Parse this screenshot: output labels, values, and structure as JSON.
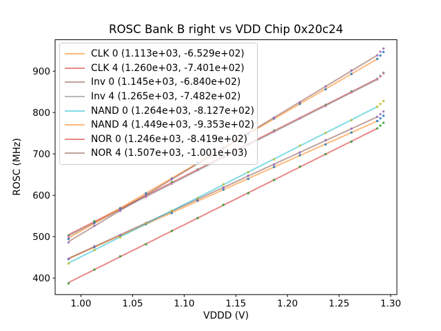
{
  "chart_data": {
    "type": "scatter",
    "title": "ROSC Bank B right vs VDD Chip 0x20c24",
    "xlabel": "VDDD (V)",
    "ylabel": "ROSC (MHz)",
    "xlim": [
      0.975,
      1.306
    ],
    "ylim": [
      360,
      976
    ],
    "grid": false,
    "legend_position": "upper left",
    "xticks": [
      {
        "value": 1.0,
        "label": "1.00"
      },
      {
        "value": 1.05,
        "label": "1.05"
      },
      {
        "value": 1.1,
        "label": "1.10"
      },
      {
        "value": 1.15,
        "label": "1.15"
      },
      {
        "value": 1.2,
        "label": "1.20"
      },
      {
        "value": 1.25,
        "label": "1.25"
      },
      {
        "value": 1.3,
        "label": "1.30"
      }
    ],
    "yticks": [
      {
        "value": 400,
        "label": "400"
      },
      {
        "value": 500,
        "label": "500"
      },
      {
        "value": 600,
        "label": "600"
      },
      {
        "value": 700,
        "label": "700"
      },
      {
        "value": 800,
        "label": "800"
      },
      {
        "value": 900,
        "label": "900"
      }
    ],
    "fit_line_x_range": [
      0.988,
      1.287
    ],
    "line_alpha": 0.55,
    "marker_alpha": 0.85,
    "series": [
      {
        "name": "CLK 0",
        "label": "CLK 0 (1.113e+03, -6.529e+02)",
        "slope": 1113.0,
        "intercept": -652.9,
        "line_color": "#ff7f0e",
        "marker_color": "#1f77b4",
        "x": [
          0.988,
          1.013,
          1.038,
          1.063,
          1.088,
          1.113,
          1.138,
          1.162,
          1.187,
          1.212,
          1.237,
          1.262,
          1.287,
          1.29,
          1.293
        ],
        "y": [
          445.7,
          474.6,
          503.4,
          530.2,
          557.0,
          586.9,
          613.7,
          639.4,
          668.2,
          697.1,
          722.9,
          751.7,
          779.5,
          785.9,
          792.2
        ]
      },
      {
        "name": "CLK 4",
        "label": "CLK 4 (1.260e+03, -7.401e+02)",
        "slope": 1260.0,
        "intercept": -740.1,
        "line_color": "#d62728",
        "marker_color": "#2ca02c",
        "x": [
          0.988,
          1.013,
          1.038,
          1.063,
          1.088,
          1.113,
          1.138,
          1.162,
          1.187,
          1.212,
          1.237,
          1.262,
          1.287,
          1.29,
          1.293
        ],
        "y": [
          502.8,
          537.3,
          567.8,
          598.3,
          631.8,
          662.3,
          692.8,
          724.0,
          756.5,
          786.0,
          818.5,
          851.0,
          881.5,
          888.3,
          896.1
        ]
      },
      {
        "name": "Inv 0",
        "label": "Inv 0 (1.145e+03, -6.840e+02)",
        "slope": 1145.0,
        "intercept": -684.0,
        "line_color": "#8c564b",
        "marker_color": "#9467bd",
        "x": [
          0.988,
          1.013,
          1.038,
          1.063,
          1.088,
          1.113,
          1.138,
          1.162,
          1.187,
          1.212,
          1.237,
          1.262,
          1.287,
          1.29,
          1.293
        ],
        "y": [
          446.3,
          476.9,
          503.5,
          533.1,
          562.8,
          589.4,
          619.0,
          647.5,
          674.1,
          703.7,
          733.4,
          761.0,
          789.6,
          796.1,
          802.5
        ]
      },
      {
        "name": "Inv 4",
        "label": "Inv 4 (1.265e+03, -7.482e+02)",
        "slope": 1265.0,
        "intercept": -748.2,
        "line_color": "#7f7f7f",
        "marker_color": "#e377c2",
        "x": [
          0.988,
          1.013,
          1.038,
          1.063,
          1.088,
          1.113,
          1.138,
          1.162,
          1.187,
          1.212,
          1.237,
          1.262,
          1.287,
          1.29,
          1.293
        ],
        "y": [
          499.6,
          533.2,
          565.9,
          595.5,
          628.1,
          660.7,
          690.4,
          721.7,
          753.4,
          786.0,
          815.6,
          848.2,
          879.9,
          886.7,
          894.4
        ]
      },
      {
        "name": "NAND 0",
        "label": "NAND 0 (1.264e+03, -8.127e+02)",
        "slope": 1264.0,
        "intercept": -812.7,
        "line_color": "#17becf",
        "marker_color": "#bcbd22",
        "x": [
          0.988,
          1.013,
          1.038,
          1.063,
          1.088,
          1.113,
          1.138,
          1.162,
          1.187,
          1.212,
          1.237,
          1.262,
          1.287,
          1.29,
          1.293
        ],
        "y": [
          435.1,
          467.7,
          498.3,
          531.9,
          562.5,
          593.1,
          626.7,
          656.1,
          686.7,
          720.3,
          750.9,
          781.5,
          814.1,
          820.9,
          827.7
        ]
      },
      {
        "name": "NAND 4",
        "label": "NAND 4 (1.449e+03, -9.353e+02)",
        "slope": 1449.0,
        "intercept": -935.3,
        "line_color": "#ff7f0e",
        "marker_color": "#1f77b4",
        "x": [
          0.988,
          1.013,
          1.038,
          1.063,
          1.088,
          1.113,
          1.138,
          1.162,
          1.187,
          1.212,
          1.237,
          1.262,
          1.287,
          1.29,
          1.293
        ],
        "y": [
          494.3,
          533.5,
          568.8,
          605.0,
          640.2,
          678.4,
          713.7,
          747.4,
          785.7,
          820.9,
          856.1,
          893.3,
          929.6,
          937.9,
          946.3
        ]
      },
      {
        "name": "NOR 0",
        "label": "NOR 0 (1.246e+03, -8.419e+02)",
        "slope": 1246.0,
        "intercept": -841.9,
        "line_color": "#d62728",
        "marker_color": "#2ca02c",
        "x": [
          0.988,
          1.013,
          1.038,
          1.063,
          1.088,
          1.113,
          1.138,
          1.162,
          1.187,
          1.212,
          1.237,
          1.262,
          1.287,
          1.29,
          1.293
        ],
        "y": [
          387.1,
          420.3,
          452.4,
          481.6,
          513.7,
          544.9,
          577.0,
          605.0,
          637.1,
          669.3,
          699.4,
          729.6,
          761.7,
          768.4,
          775.2
        ]
      },
      {
        "name": "NOR 4",
        "label": "NOR 4 (1.507e+03, -1.001e+03)",
        "slope": 1507.0,
        "intercept": -1001.0,
        "line_color": "#8c564b",
        "marker_color": "#9467bd",
        "x": [
          0.988,
          1.013,
          1.038,
          1.063,
          1.088,
          1.113,
          1.138,
          1.162,
          1.187,
          1.212,
          1.237,
          1.262,
          1.287,
          1.29,
          1.293
        ],
        "y": [
          485.9,
          526.6,
          562.3,
          600.9,
          639.6,
          676.3,
          713.0,
          751.1,
          787.8,
          824.5,
          863.2,
          901.8,
          938.5,
          947.0,
          954.6
        ]
      }
    ]
  }
}
